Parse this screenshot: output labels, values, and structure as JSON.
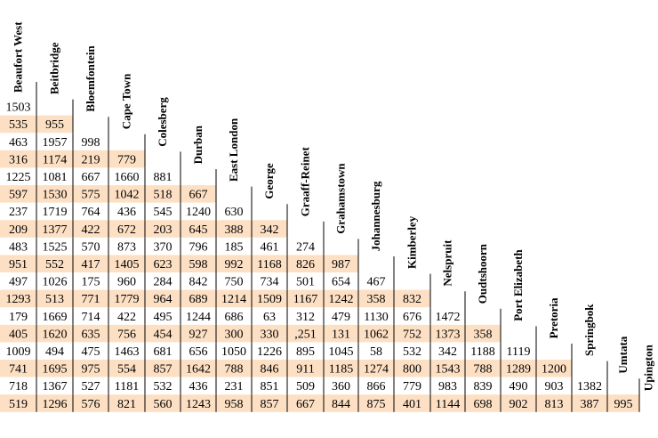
{
  "chart_data": {
    "type": "table",
    "title": "",
    "cities": [
      "Beaufort West",
      "Beitbridge",
      "Bloemfontein",
      "Cape Town",
      "Colesberg",
      "Durban",
      "East London",
      "George",
      "Graaff-Reinet",
      "Grahamstown",
      "Johannesburg",
      "Kimberley",
      "Nelspruit",
      "Oudtshoorn",
      "Port Elizabeth",
      "Pretoria",
      "Springbok",
      "Umtata",
      "Upington"
    ],
    "rows": [
      {
        "city": "Beitbridge",
        "values": [
          "1503"
        ]
      },
      {
        "city": "Bloemfontein",
        "values": [
          "535",
          "955"
        ]
      },
      {
        "city": "Cape Town",
        "values": [
          "463",
          "1957",
          "998"
        ]
      },
      {
        "city": "Colesberg",
        "values": [
          "316",
          "1174",
          "219",
          "779"
        ]
      },
      {
        "city": "Durban",
        "values": [
          "1225",
          "1081",
          "667",
          "1660",
          "881"
        ]
      },
      {
        "city": "East London",
        "values": [
          "597",
          "1530",
          "575",
          "1042",
          "518",
          "667"
        ]
      },
      {
        "city": "George",
        "values": [
          "237",
          "1719",
          "764",
          "436",
          "545",
          "1240",
          "630"
        ]
      },
      {
        "city": "Graaff-Reinet",
        "values": [
          "209",
          "1377",
          "422",
          "672",
          "203",
          "645",
          "388",
          "342"
        ]
      },
      {
        "city": "Grahamstown",
        "values": [
          "483",
          "1525",
          "570",
          "873",
          "370",
          "796",
          "185",
          "461",
          "274"
        ]
      },
      {
        "city": "Johannesburg",
        "values": [
          "951",
          "552",
          "417",
          "1405",
          "623",
          "598",
          "992",
          "1168",
          "826",
          "987"
        ]
      },
      {
        "city": "Kimberley",
        "values": [
          "497",
          "1026",
          "175",
          "960",
          "284",
          "842",
          "750",
          "734",
          "501",
          "654",
          "467"
        ]
      },
      {
        "city": "Nelspruit",
        "values": [
          "1293",
          "513",
          "771",
          "1779",
          "964",
          "689",
          "1214",
          "1509",
          "1167",
          "1242",
          "358",
          "832"
        ]
      },
      {
        "city": "Oudtshoorn",
        "values": [
          "179",
          "1669",
          "714",
          "422",
          "495",
          "1244",
          "686",
          "63",
          "312",
          "479",
          "1130",
          "676",
          "1472"
        ]
      },
      {
        "city": "Port Elizabeth",
        "values": [
          "405",
          "1620",
          "635",
          "756",
          "454",
          "927",
          "300",
          "330",
          ",251",
          "131",
          "1062",
          "752",
          "1373",
          "358"
        ]
      },
      {
        "city": "Pretoria",
        "values": [
          "1009",
          "494",
          "475",
          "1463",
          "681",
          "656",
          "1050",
          "1226",
          "895",
          "1045",
          "58",
          "532",
          "342",
          "1188",
          "1119"
        ]
      },
      {
        "city": "Springbok",
        "values": [
          "741",
          "1695",
          "975",
          "554",
          "857",
          "1642",
          "788",
          "846",
          "911",
          "1185",
          "1274",
          "800",
          "1543",
          "788",
          "1289",
          "1200"
        ]
      },
      {
        "city": "Umtata",
        "values": [
          "718",
          "1367",
          "527",
          "1181",
          "532",
          "436",
          "231",
          "851",
          "509",
          "360",
          "866",
          "779",
          "983",
          "839",
          "490",
          "903",
          "1382"
        ]
      },
      {
        "city": "Upington",
        "values": [
          "519",
          "1296",
          "576",
          "821",
          "560",
          "1243",
          "958",
          "857",
          "667",
          "844",
          "875",
          "401",
          "1144",
          "698",
          "902",
          "813",
          "387",
          "995"
        ]
      }
    ]
  },
  "colors": {
    "shaded_row": "#fde0c4",
    "plain_row": "#ffffff",
    "text": "#000000",
    "divider": "#000000"
  }
}
